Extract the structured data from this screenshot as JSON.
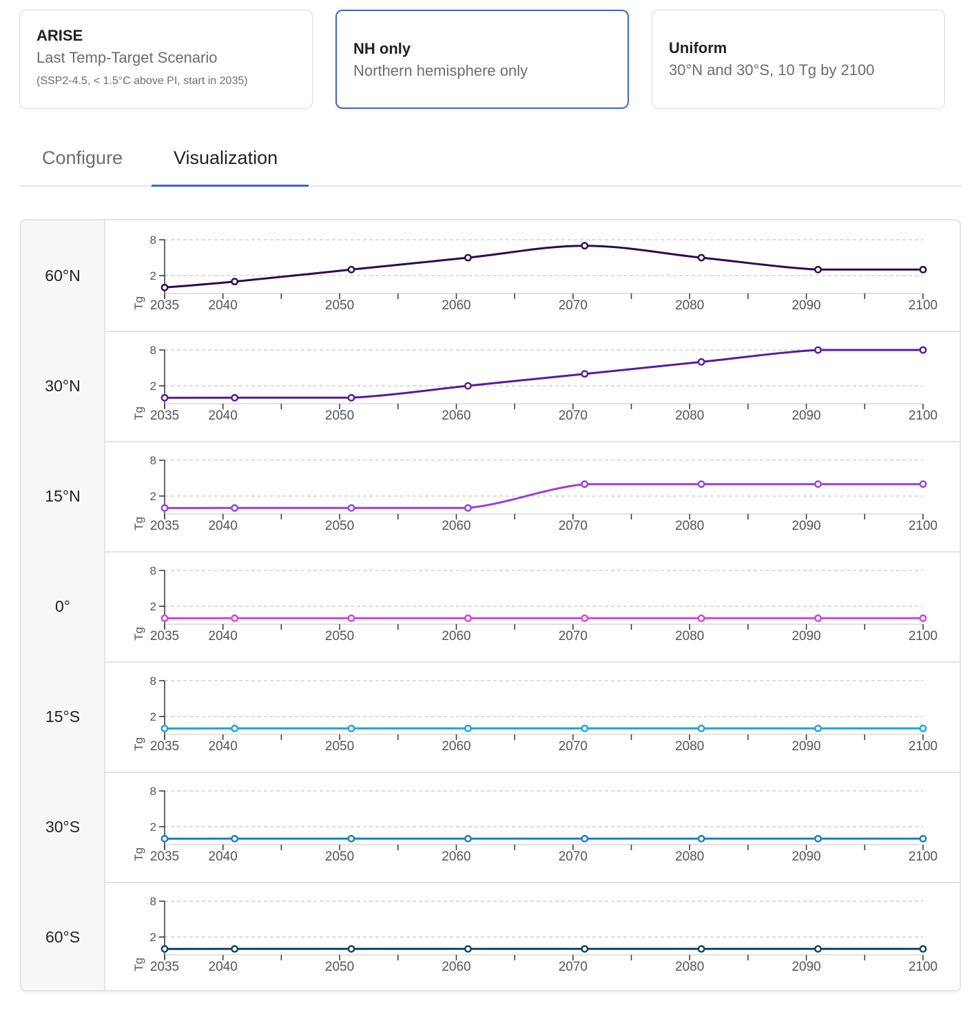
{
  "scenarios": [
    {
      "title": "ARISE",
      "subtitle": "Last Temp-Target Scenario",
      "note": "(SSP2-4.5, < 1.5°C above PI, start in 2035)"
    },
    {
      "title": "NH only",
      "subtitle": "Northern hemisphere only"
    },
    {
      "title": "Uniform",
      "subtitle": "30°N and 30°S, 10 Tg by 2100"
    }
  ],
  "selected_scenario": "NH only",
  "tabs": [
    {
      "label": "Configure",
      "active": false
    },
    {
      "label": "Visualization",
      "active": true
    }
  ],
  "chart_data": {
    "type": "line",
    "title": "",
    "xlabel": "",
    "ylabel": "Tg",
    "x": [
      2035,
      2041,
      2051,
      2061,
      2071,
      2081,
      2091,
      2100
    ],
    "x_ticks": [
      2035,
      2040,
      2050,
      2060,
      2070,
      2080,
      2090,
      2100
    ],
    "y_ticks": [
      2,
      8
    ],
    "ylim": [
      -1,
      8
    ],
    "grid": "dashed horizontal at 2 and 8",
    "series": [
      {
        "name": "60°N",
        "color": "#2d0a4e",
        "values": [
          0,
          1,
          3,
          5,
          7,
          5,
          3,
          3
        ]
      },
      {
        "name": "30°N",
        "color": "#5b1a9a",
        "values": [
          0,
          0,
          0,
          2,
          4,
          6,
          8,
          8
        ]
      },
      {
        "name": "15°N",
        "color": "#9a3ee0",
        "values": [
          0,
          0,
          0,
          0,
          4,
          4,
          4,
          4
        ]
      },
      {
        "name": "0°",
        "color": "#cc44e6",
        "values": [
          0,
          0,
          0,
          0,
          0,
          0,
          0,
          0
        ]
      },
      {
        "name": "15°S",
        "color": "#1aa3e6",
        "values": [
          0,
          0,
          0,
          0,
          0,
          0,
          0,
          0
        ]
      },
      {
        "name": "30°S",
        "color": "#1b7fc4",
        "values": [
          0,
          0,
          0,
          0,
          0,
          0,
          0,
          0
        ]
      },
      {
        "name": "60°S",
        "color": "#0e4466",
        "values": [
          0,
          0,
          0,
          0,
          0,
          0,
          0,
          0
        ]
      }
    ]
  }
}
